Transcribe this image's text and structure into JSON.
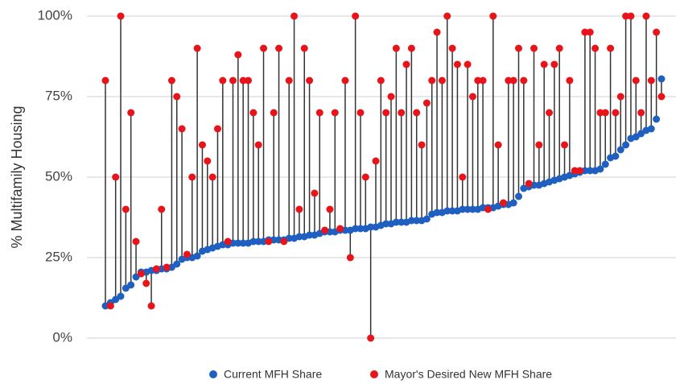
{
  "chart_data": {
    "type": "dumbbell",
    "y_label": "% Multifamily Housing",
    "ylim": [
      0,
      100
    ],
    "yticks": [
      {
        "value": 0,
        "label": "0%"
      },
      {
        "value": 25,
        "label": "25%"
      },
      {
        "value": 50,
        "label": "50%"
      },
      {
        "value": 75,
        "label": "75%"
      },
      {
        "value": 100,
        "label": "100%"
      }
    ],
    "grid": true,
    "legend": "bottom",
    "connector_color": "#333333",
    "series": [
      {
        "name": "Current MFH Share",
        "color": "#1f5fbf",
        "values": [
          10,
          11,
          12,
          13,
          15.5,
          16.5,
          19,
          20.5,
          20.5,
          21,
          21,
          21.5,
          21.5,
          22,
          23,
          24.5,
          25,
          25,
          25.5,
          27,
          27.5,
          28,
          28.5,
          29,
          29,
          29.5,
          29.5,
          29.5,
          29.5,
          30,
          30,
          30,
          30.5,
          30.5,
          30.5,
          30.5,
          31,
          31,
          31.5,
          31.5,
          32,
          32,
          32.5,
          33,
          33,
          33,
          33.5,
          33.5,
          33.5,
          34,
          34,
          34,
          34.5,
          34.5,
          35,
          35.5,
          35.5,
          36,
          36,
          36,
          36.5,
          36.5,
          36.5,
          37,
          38.5,
          39,
          39,
          39.5,
          39.5,
          39.5,
          40,
          40,
          40,
          40,
          40.5,
          40.5,
          40.5,
          41,
          41.5,
          41.5,
          42,
          44,
          46.5,
          47,
          47.5,
          47.5,
          48,
          48.5,
          49,
          49.5,
          50,
          50.5,
          51,
          51.5,
          52,
          52,
          52,
          52.5,
          54,
          56,
          56.5,
          58.5,
          60,
          62,
          62.5,
          63.5,
          64.5,
          65,
          68,
          80.5
        ]
      },
      {
        "name": "Mayor's Desired New MFH Share",
        "color": "#e8141c",
        "values": [
          80,
          10,
          50,
          100,
          40,
          70,
          30,
          20,
          17,
          10,
          21.5,
          40,
          22,
          80,
          75,
          65,
          26,
          50,
          90,
          60,
          55,
          50,
          65,
          80,
          30,
          80,
          88,
          80,
          80,
          70,
          60,
          90,
          30,
          70,
          90,
          30,
          80,
          100,
          40,
          90,
          80,
          45,
          70,
          33.5,
          40,
          70,
          34,
          80,
          25,
          100,
          70,
          50,
          0,
          55,
          80,
          70,
          75,
          90,
          70,
          85,
          90,
          70,
          60,
          73,
          80,
          95,
          80,
          100,
          90,
          85,
          50,
          85,
          75,
          80,
          80,
          40,
          100,
          60,
          42,
          80,
          80,
          90,
          80,
          48,
          90,
          60,
          85,
          70,
          85,
          90,
          60,
          80,
          52,
          52,
          95,
          95,
          90,
          70,
          70,
          90,
          70,
          75,
          100,
          100,
          80,
          70,
          100,
          80,
          95,
          75
        ]
      }
    ]
  }
}
